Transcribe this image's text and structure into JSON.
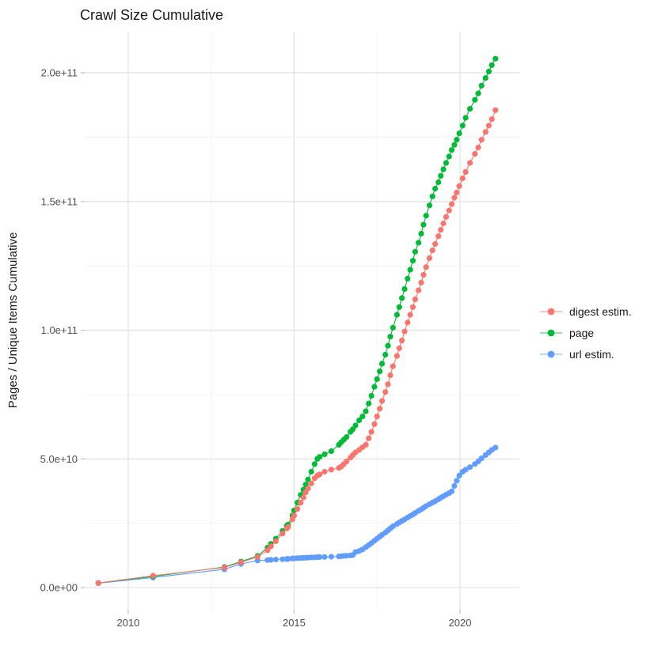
{
  "chart": {
    "title": "Crawl Size Cumulative",
    "y_axis_title": "Pages / Unique Items Cumulative",
    "x_axis_title": ""
  },
  "chart_data": {
    "type": "scatter",
    "style": "points connected by thin lines (ggplot2-style)",
    "title": "Crawl Size Cumulative",
    "xlabel": "",
    "ylabel": "Pages / Unique Items Cumulative",
    "y_unit": "items, values listed in billions (1e9)",
    "x_unit": "year (decimal)",
    "grid": "major and minor light-gray gridlines on white panel",
    "x_axis": {
      "range": [
        2008.69,
        2021.79
      ],
      "ticks": [
        2010,
        2015,
        2020
      ],
      "tick_labels": [
        "2010",
        "2015",
        "2020"
      ],
      "minor_ticks": [
        2012.5,
        2017.5
      ]
    },
    "y_axis": {
      "range": [
        -8.6,
        216
      ],
      "ticks": [
        0,
        50,
        100,
        150,
        200
      ],
      "tick_labels": [
        "0.0e+00",
        "5.0e+10",
        "1.0e+11",
        "1.5e+11",
        "2.0e+11"
      ],
      "minor_ticks": [
        25,
        75,
        125,
        175
      ]
    },
    "legend": {
      "position": "right-center",
      "entries": [
        "digest estim.",
        "page",
        "url estim."
      ]
    },
    "x": [
      2009.1,
      2010.75,
      2012.9,
      2013.4,
      2013.9,
      2014.2,
      2014.3,
      2014.45,
      2014.65,
      2014.78,
      2014.82,
      2014.95,
      2015.0,
      2015.1,
      2015.2,
      2015.28,
      2015.35,
      2015.42,
      2015.52,
      2015.62,
      2015.7,
      2015.77,
      2015.92,
      2016.12,
      2016.35,
      2016.42,
      2016.5,
      2016.58,
      2016.7,
      2016.77,
      2016.85,
      2016.96,
      2017.06,
      2017.16,
      2017.25,
      2017.33,
      2017.42,
      2017.5,
      2017.58,
      2017.65,
      2017.75,
      2017.83,
      2017.9,
      2017.98,
      2018.1,
      2018.17,
      2018.25,
      2018.33,
      2018.42,
      2018.5,
      2018.58,
      2018.65,
      2018.75,
      2018.83,
      2018.9,
      2018.98,
      2019.08,
      2019.17,
      2019.25,
      2019.35,
      2019.42,
      2019.5,
      2019.58,
      2019.67,
      2019.75,
      2019.83,
      2019.9,
      2019.98,
      2020.08,
      2020.17,
      2020.3,
      2020.45,
      2020.55,
      2020.65,
      2020.77,
      2020.87,
      2020.96,
      2021.07
    ],
    "series": [
      {
        "name": "digest estim.",
        "color": "#F8766D",
        "y_billions": [
          1.8,
          4.6,
          7.8,
          9.8,
          11.9,
          14.5,
          16,
          18,
          21,
          23,
          23.5,
          26.5,
          28,
          30.5,
          33,
          35,
          37,
          38.5,
          40.5,
          42.5,
          43.5,
          44,
          45,
          45.8,
          46.5,
          47,
          48,
          49,
          50.5,
          51.5,
          52.5,
          53.5,
          54.5,
          55.5,
          58,
          60.5,
          63.5,
          66.5,
          69.5,
          72.5,
          76,
          79,
          82.5,
          86,
          90,
          93,
          96,
          99.5,
          103,
          106,
          109,
          112,
          115.5,
          118.5,
          121.5,
          124.5,
          128,
          131,
          133.5,
          136.5,
          139,
          141.5,
          144,
          146.5,
          149,
          151.5,
          153.5,
          156,
          159,
          161.5,
          165,
          168.5,
          171,
          174,
          177,
          179.5,
          182,
          185.5
        ]
      },
      {
        "name": "page",
        "color": "#00BA38",
        "y_billions": [
          1.8,
          4.3,
          8,
          10.1,
          12.3,
          15.5,
          17,
          19,
          22,
          24,
          24.5,
          28,
          30,
          33,
          36,
          38,
          40,
          42,
          45,
          48,
          50,
          50.8,
          51.8,
          53,
          55.5,
          56.5,
          57.5,
          58.5,
          60.5,
          61.5,
          63,
          65,
          66.5,
          68.5,
          71.5,
          74.5,
          78,
          81,
          84,
          87,
          90.5,
          94,
          97.5,
          101,
          106,
          109,
          112.5,
          116,
          120,
          123.5,
          127,
          130.5,
          134,
          137.5,
          141,
          144.5,
          148.5,
          152,
          155,
          157.5,
          160,
          162.5,
          165,
          167.5,
          170,
          172,
          174,
          176.5,
          179.5,
          182.5,
          186,
          189.5,
          192,
          195,
          198,
          200.5,
          203,
          205.5
        ]
      },
      {
        "name": "url estim.",
        "color": "#619CFF",
        "y_billions": [
          1.7,
          3.9,
          7.1,
          9.2,
          10.5,
          10.7,
          10.8,
          10.9,
          11,
          11.1,
          11.15,
          11.3,
          11.35,
          11.4,
          11.5,
          11.55,
          11.6,
          11.65,
          11.7,
          11.75,
          11.8,
          11.85,
          11.9,
          12,
          12.1,
          12.2,
          12.3,
          12.4,
          12.5,
          12.6,
          13.8,
          14.2,
          14.8,
          15.7,
          16.5,
          17.3,
          18.2,
          19,
          19.8,
          20.5,
          21.4,
          22.2,
          23,
          23.8,
          24.7,
          25.3,
          25.9,
          26.5,
          27.2,
          27.8,
          28.4,
          29,
          29.8,
          30.4,
          31,
          31.7,
          32.4,
          33,
          33.6,
          34.3,
          34.9,
          35.5,
          36.1,
          36.7,
          37.4,
          39.5,
          41.5,
          43.5,
          45,
          45.8,
          46.8,
          48,
          49,
          50.2,
          51.5,
          52.5,
          53.5,
          54.4
        ]
      }
    ],
    "draw_order_indices": [
      2,
      1,
      0
    ],
    "colors": {
      "digest": "#F8766D",
      "page": "#00BA38",
      "url": "#619CFF",
      "grid_major": "#e3e3e3",
      "grid_minor": "#f1f1f1",
      "tick": "#bdbdbd",
      "axis_text": "#4d4d4d"
    }
  }
}
